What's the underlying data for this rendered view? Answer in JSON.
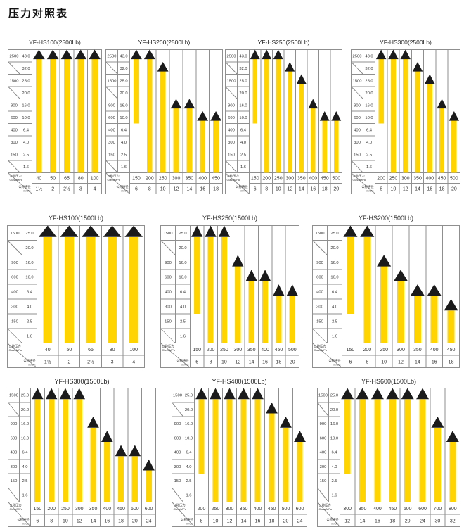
{
  "page_title": "压力对照表",
  "corner": {
    "pressure_label": "公称压力",
    "pressure_unit": "Class/MPa",
    "diameter_label": "公称通径",
    "diameter_unit": "mm/in"
  },
  "colors": {
    "bar": "#FFD400",
    "triangle": "#1b1b1b",
    "grid": "#8f8f8f",
    "text": "#333333"
  },
  "chart_data": [
    {
      "type": "bar",
      "title": "YF-HS100(2500Lb)",
      "pressure_classes": [
        "2500",
        "",
        "1500",
        "",
        "900",
        "600",
        "400",
        "300",
        "150",
        ""
      ],
      "pressure_mpa": [
        "43.0",
        "32.0",
        "25.0",
        "20.0",
        "16.0",
        "10.0",
        "6.4",
        "4.0",
        "2.5",
        "1.6"
      ],
      "columns": [
        {
          "mm": "40",
          "inch": "1½",
          "top_band": 0,
          "bottom_band": 9
        },
        {
          "mm": "50",
          "inch": "2",
          "top_band": 0,
          "bottom_band": 9
        },
        {
          "mm": "65",
          "inch": "2½",
          "top_band": 0,
          "bottom_band": 9
        },
        {
          "mm": "80",
          "inch": "3",
          "top_band": 0,
          "bottom_band": 9
        },
        {
          "mm": "100",
          "inch": "4",
          "top_band": 0,
          "bottom_band": 9
        }
      ]
    },
    {
      "type": "bar",
      "title": "YF-HS200(2500Lb)",
      "pressure_classes": [
        "2500",
        "",
        "1500",
        "",
        "900",
        "600",
        "400",
        "300",
        "150",
        ""
      ],
      "pressure_mpa": [
        "43.0",
        "32.0",
        "25.0",
        "20.0",
        "16.0",
        "10.0",
        "6.4",
        "4.0",
        "2.5",
        "1.6"
      ],
      "columns": [
        {
          "mm": "150",
          "inch": "6",
          "top_band": 0,
          "bottom_band": 5
        },
        {
          "mm": "200",
          "inch": "8",
          "top_band": 0,
          "bottom_band": 9
        },
        {
          "mm": "250",
          "inch": "10",
          "top_band": 1,
          "bottom_band": 9
        },
        {
          "mm": "300",
          "inch": "12",
          "top_band": 4,
          "bottom_band": 9
        },
        {
          "mm": "350",
          "inch": "14",
          "top_band": 4,
          "bottom_band": 9
        },
        {
          "mm": "400",
          "inch": "16",
          "top_band": 5,
          "bottom_band": 9
        },
        {
          "mm": "450",
          "inch": "18",
          "top_band": 5,
          "bottom_band": 9
        }
      ]
    },
    {
      "type": "bar",
      "title": "YF-HS250(2500Lb)",
      "pressure_classes": [
        "2500",
        "",
        "1500",
        "",
        "900",
        "600",
        "400",
        "300",
        "150",
        ""
      ],
      "pressure_mpa": [
        "43.0",
        "32.0",
        "25.0",
        "20.0",
        "16.0",
        "10.0",
        "6.4",
        "4.0",
        "2.5",
        "1.6"
      ],
      "columns": [
        {
          "mm": "150",
          "inch": "6",
          "top_band": 0,
          "bottom_band": 5
        },
        {
          "mm": "200",
          "inch": "8",
          "top_band": 0,
          "bottom_band": 9
        },
        {
          "mm": "250",
          "inch": "10",
          "top_band": 0,
          "bottom_band": 9
        },
        {
          "mm": "300",
          "inch": "12",
          "top_band": 1,
          "bottom_band": 9
        },
        {
          "mm": "350",
          "inch": "14",
          "top_band": 2,
          "bottom_band": 9
        },
        {
          "mm": "400",
          "inch": "16",
          "top_band": 4,
          "bottom_band": 9
        },
        {
          "mm": "450",
          "inch": "18",
          "top_band": 5,
          "bottom_band": 9
        },
        {
          "mm": "500",
          "inch": "20",
          "top_band": 5,
          "bottom_band": 9
        }
      ]
    },
    {
      "type": "bar",
      "title": "YF-HS300(2500Lb)",
      "pressure_classes": [
        "2500",
        "",
        "1500",
        "",
        "900",
        "600",
        "400",
        "300",
        "150",
        ""
      ],
      "pressure_mpa": [
        "43.0",
        "32.0",
        "25.0",
        "20.0",
        "16.0",
        "10.0",
        "6.4",
        "4.0",
        "2.5",
        "1.6"
      ],
      "columns": [
        {
          "mm": "200",
          "inch": "8",
          "top_band": 0,
          "bottom_band": 5
        },
        {
          "mm": "250",
          "inch": "10",
          "top_band": 0,
          "bottom_band": 9
        },
        {
          "mm": "300",
          "inch": "12",
          "top_band": 0,
          "bottom_band": 9
        },
        {
          "mm": "350",
          "inch": "14",
          "top_band": 1,
          "bottom_band": 9
        },
        {
          "mm": "400",
          "inch": "16",
          "top_band": 2,
          "bottom_band": 9
        },
        {
          "mm": "450",
          "inch": "18",
          "top_band": 4,
          "bottom_band": 9
        },
        {
          "mm": "500",
          "inch": "20",
          "top_band": 5,
          "bottom_band": 9
        }
      ]
    },
    {
      "type": "bar",
      "title": "YF-HS100(1500Lb)",
      "pressure_classes": [
        "1500",
        "",
        "900",
        "600",
        "400",
        "300",
        "150",
        ""
      ],
      "pressure_mpa": [
        "25.0",
        "20.0",
        "16.0",
        "10.0",
        "6.4",
        "4.0",
        "2.5",
        "1.6"
      ],
      "columns": [
        {
          "mm": "40",
          "inch": "1½",
          "top_band": 0,
          "bottom_band": 7
        },
        {
          "mm": "50",
          "inch": "2",
          "top_band": 0,
          "bottom_band": 7
        },
        {
          "mm": "65",
          "inch": "2½",
          "top_band": 0,
          "bottom_band": 7
        },
        {
          "mm": "80",
          "inch": "3",
          "top_band": 0,
          "bottom_band": 7
        },
        {
          "mm": "100",
          "inch": "4",
          "top_band": 0,
          "bottom_band": 7
        }
      ]
    },
    {
      "type": "bar",
      "title": "YF-HS250(1500Lb)",
      "pressure_classes": [
        "1500",
        "",
        "900",
        "600",
        "400",
        "300",
        "150",
        ""
      ],
      "pressure_mpa": [
        "25.0",
        "20.0",
        "16.0",
        "10.0",
        "6.4",
        "4.0",
        "2.5",
        "1.6"
      ],
      "columns": [
        {
          "mm": "150",
          "inch": "6",
          "top_band": 0,
          "bottom_band": 5
        },
        {
          "mm": "200",
          "inch": "8",
          "top_band": 0,
          "bottom_band": 7
        },
        {
          "mm": "250",
          "inch": "10",
          "top_band": 0,
          "bottom_band": 7
        },
        {
          "mm": "300",
          "inch": "12",
          "top_band": 2,
          "bottom_band": 7
        },
        {
          "mm": "350",
          "inch": "14",
          "top_band": 3,
          "bottom_band": 7
        },
        {
          "mm": "400",
          "inch": "16",
          "top_band": 3,
          "bottom_band": 7
        },
        {
          "mm": "450",
          "inch": "18",
          "top_band": 4,
          "bottom_band": 7
        },
        {
          "mm": "500",
          "inch": "20",
          "top_band": 4,
          "bottom_band": 7
        }
      ]
    },
    {
      "type": "bar",
      "title": "YF-HS200(1500Lb)",
      "pressure_classes": [
        "1500",
        "",
        "900",
        "600",
        "400",
        "300",
        "150",
        ""
      ],
      "pressure_mpa": [
        "25.0",
        "20.0",
        "16.0",
        "10.0",
        "6.4",
        "4.0",
        "2.5",
        "1.6"
      ],
      "columns": [
        {
          "mm": "150",
          "inch": "6",
          "top_band": 0,
          "bottom_band": 5
        },
        {
          "mm": "200",
          "inch": "8",
          "top_band": 0,
          "bottom_band": 7
        },
        {
          "mm": "250",
          "inch": "10",
          "top_band": 2,
          "bottom_band": 7
        },
        {
          "mm": "300",
          "inch": "12",
          "top_band": 3,
          "bottom_band": 7
        },
        {
          "mm": "350",
          "inch": "14",
          "top_band": 4,
          "bottom_band": 7
        },
        {
          "mm": "400",
          "inch": "16",
          "top_band": 4,
          "bottom_band": 7
        },
        {
          "mm": "450",
          "inch": "18",
          "top_band": 5,
          "bottom_band": 7
        }
      ]
    },
    {
      "type": "bar",
      "title": "YF-HS300(1500Lb)",
      "pressure_classes": [
        "1500",
        "",
        "900",
        "600",
        "400",
        "300",
        "150",
        ""
      ],
      "pressure_mpa": [
        "25.0",
        "20.0",
        "16.0",
        "10.0",
        "6.4",
        "4.0",
        "2.5",
        "1.6"
      ],
      "columns": [
        {
          "mm": "150",
          "inch": "6",
          "top_band": 0,
          "bottom_band": 7
        },
        {
          "mm": "200",
          "inch": "8",
          "top_band": 0,
          "bottom_band": 7
        },
        {
          "mm": "250",
          "inch": "10",
          "top_band": 0,
          "bottom_band": 7
        },
        {
          "mm": "300",
          "inch": "12",
          "top_band": 0,
          "bottom_band": 7
        },
        {
          "mm": "350",
          "inch": "14",
          "top_band": 2,
          "bottom_band": 7
        },
        {
          "mm": "400",
          "inch": "16",
          "top_band": 3,
          "bottom_band": 7
        },
        {
          "mm": "450",
          "inch": "18",
          "top_band": 4,
          "bottom_band": 7
        },
        {
          "mm": "500",
          "inch": "20",
          "top_band": 4,
          "bottom_band": 7
        },
        {
          "mm": "600",
          "inch": "24",
          "top_band": 5,
          "bottom_band": 7
        }
      ]
    },
    {
      "type": "bar",
      "title": "YF-HS400(1500Lb)",
      "pressure_classes": [
        "1500",
        "",
        "900",
        "600",
        "400",
        "300",
        "150",
        ""
      ],
      "pressure_mpa": [
        "25.0",
        "20.0",
        "16.0",
        "10.0",
        "6.4",
        "4.0",
        "2.5",
        "1.6"
      ],
      "columns": [
        {
          "mm": "200",
          "inch": "8",
          "top_band": 0,
          "bottom_band": 5
        },
        {
          "mm": "250",
          "inch": "10",
          "top_band": 0,
          "bottom_band": 7
        },
        {
          "mm": "300",
          "inch": "12",
          "top_band": 0,
          "bottom_band": 7
        },
        {
          "mm": "350",
          "inch": "14",
          "top_band": 0,
          "bottom_band": 7
        },
        {
          "mm": "400",
          "inch": "16",
          "top_band": 0,
          "bottom_band": 7
        },
        {
          "mm": "450",
          "inch": "18",
          "top_band": 1,
          "bottom_band": 7
        },
        {
          "mm": "500",
          "inch": "20",
          "top_band": 2,
          "bottom_band": 7
        },
        {
          "mm": "600",
          "inch": "24",
          "top_band": 3,
          "bottom_band": 7
        }
      ]
    },
    {
      "type": "bar",
      "title": "YF-HS600(1500Lb)",
      "pressure_classes": [
        "1500",
        "",
        "900",
        "600",
        "400",
        "300",
        "150",
        ""
      ],
      "pressure_mpa": [
        "25.0",
        "20.0",
        "16.0",
        "10.0",
        "6.4",
        "4.0",
        "2.5",
        "1.6"
      ],
      "columns": [
        {
          "mm": "300",
          "inch": "12",
          "top_band": 0,
          "bottom_band": 5
        },
        {
          "mm": "350",
          "inch": "14",
          "top_band": 0,
          "bottom_band": 7
        },
        {
          "mm": "400",
          "inch": "16",
          "top_band": 0,
          "bottom_band": 7
        },
        {
          "mm": "450",
          "inch": "18",
          "top_band": 0,
          "bottom_band": 7
        },
        {
          "mm": "500",
          "inch": "20",
          "top_band": 0,
          "bottom_band": 7
        },
        {
          "mm": "600",
          "inch": "24",
          "top_band": 0,
          "bottom_band": 7
        },
        {
          "mm": "700",
          "inch": "30",
          "top_band": 2,
          "bottom_band": 7
        },
        {
          "mm": "800",
          "inch": "32",
          "top_band": 3,
          "bottom_band": 7
        }
      ]
    }
  ]
}
